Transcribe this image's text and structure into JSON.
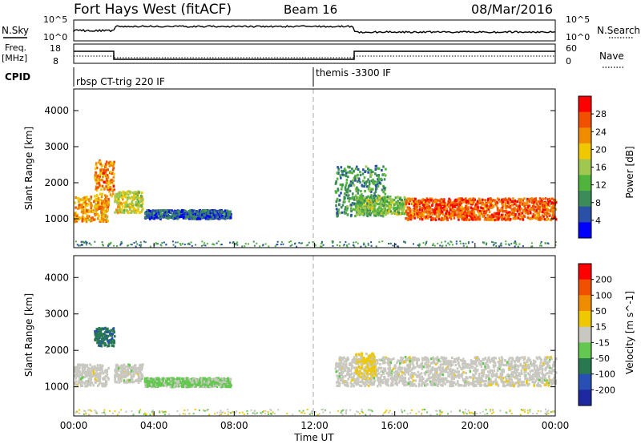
{
  "header": {
    "site": "Fort Hays West (fitACF)",
    "beam": "Beam 16",
    "date": "08/Mar/2016"
  },
  "top_panels": {
    "nsky_label": "N.Sky",
    "nsky_ticks": [
      "10^5",
      "10^0"
    ],
    "nsearch_label": "N.Search",
    "nsearch_ticks": [
      "10^5",
      "10^0"
    ],
    "freq_label": "Freq.",
    "freq_unit": "[MHz]",
    "freq_ticks": [
      "18",
      "8"
    ],
    "nave_label": "Nave",
    "nave_ticks": [
      "60",
      "0"
    ],
    "cpid_label": "CPID",
    "cpid_segments": [
      {
        "label": "rbsp CT-trig 220 IF",
        "start_hour": 0
      },
      {
        "label": "themis -3300 IF",
        "start_hour": 12
      }
    ]
  },
  "colors": {
    "power_scale": [
      "#0000ff",
      "#2a50a8",
      "#3c8c5a",
      "#50b43c",
      "#a0c850",
      "#f0c800",
      "#f08c00",
      "#f05000",
      "#ff0000"
    ],
    "velocity_scale": [
      "#1e28a0",
      "#2850b4",
      "#287850",
      "#64c850",
      "#c8c8c0",
      "#f0c800",
      "#f08c00",
      "#f05000",
      "#ff0000"
    ],
    "cursor_dash": "#aaaaaa"
  },
  "chart_data": [
    {
      "type": "heatmap",
      "name": "power",
      "ylabel": "Slant Range [km]",
      "y_ticks": [
        "4000",
        "3000",
        "2000",
        "1000"
      ],
      "ylim": [
        200,
        4600
      ],
      "x_ticks": [
        "00:00",
        "04:00",
        "08:00",
        "12:00",
        "16:00",
        "20:00",
        "00:00"
      ],
      "xlim_hours": [
        0,
        24
      ],
      "colorbar_label": "Power [dB]",
      "colorbar_ticks": [
        "28",
        "24",
        "20",
        "16",
        "12",
        "8",
        "4"
      ],
      "colorbar_range": [
        0,
        32
      ],
      "regions": [
        {
          "t0": 0.0,
          "t1": 1.7,
          "r_center": 1300,
          "r_spread": 350,
          "value": 22
        },
        {
          "t0": 1.0,
          "t1": 2.0,
          "r_center": 2150,
          "r_spread": 500,
          "value": 24
        },
        {
          "t0": 2.0,
          "t1": 3.4,
          "r_center": 1500,
          "r_spread": 300,
          "value": 18
        },
        {
          "t0": 3.5,
          "t1": 7.8,
          "r_center": 1150,
          "r_spread": 120,
          "value": 6
        },
        {
          "t0": 13.0,
          "t1": 15.5,
          "r_center": 1800,
          "r_spread": 700,
          "value": 10
        },
        {
          "t0": 14.0,
          "t1": 16.5,
          "r_center": 1400,
          "r_spread": 250,
          "value": 14
        },
        {
          "t0": 16.5,
          "t1": 24.0,
          "r_center": 1300,
          "r_spread": 300,
          "value": 26
        }
      ]
    },
    {
      "type": "heatmap",
      "name": "velocity",
      "ylabel": "Slant Range [km]",
      "y_ticks": [
        "4000",
        "3000",
        "2000",
        "1000"
      ],
      "ylim": [
        200,
        4600
      ],
      "x_ticks": [
        "00:00",
        "04:00",
        "08:00",
        "12:00",
        "16:00",
        "20:00",
        "00:00"
      ],
      "xlim_hours": [
        0,
        24
      ],
      "xlabel": "Time UT",
      "colorbar_label": "Velocity [m s^-1]",
      "colorbar_ticks": [
        "200",
        "100",
        "50",
        "15",
        "-15",
        "-50",
        "-100",
        "-200"
      ],
      "colorbar_range": [
        -250,
        250
      ],
      "regions": [
        {
          "t0": 0.0,
          "t1": 1.7,
          "r_center": 1350,
          "r_spread": 300,
          "value": 0
        },
        {
          "t0": 1.0,
          "t1": 2.0,
          "r_center": 2400,
          "r_spread": 250,
          "value": -120
        },
        {
          "t0": 2.0,
          "t1": 3.4,
          "r_center": 1400,
          "r_spread": 250,
          "value": 0
        },
        {
          "t0": 3.5,
          "t1": 7.8,
          "r_center": 1150,
          "r_spread": 120,
          "value": -40
        },
        {
          "t0": 13.0,
          "t1": 24.0,
          "r_center": 1450,
          "r_spread": 400,
          "value": 0
        },
        {
          "t0": 14.0,
          "t1": 15.0,
          "r_center": 1600,
          "r_spread": 350,
          "value": 40
        }
      ]
    }
  ]
}
